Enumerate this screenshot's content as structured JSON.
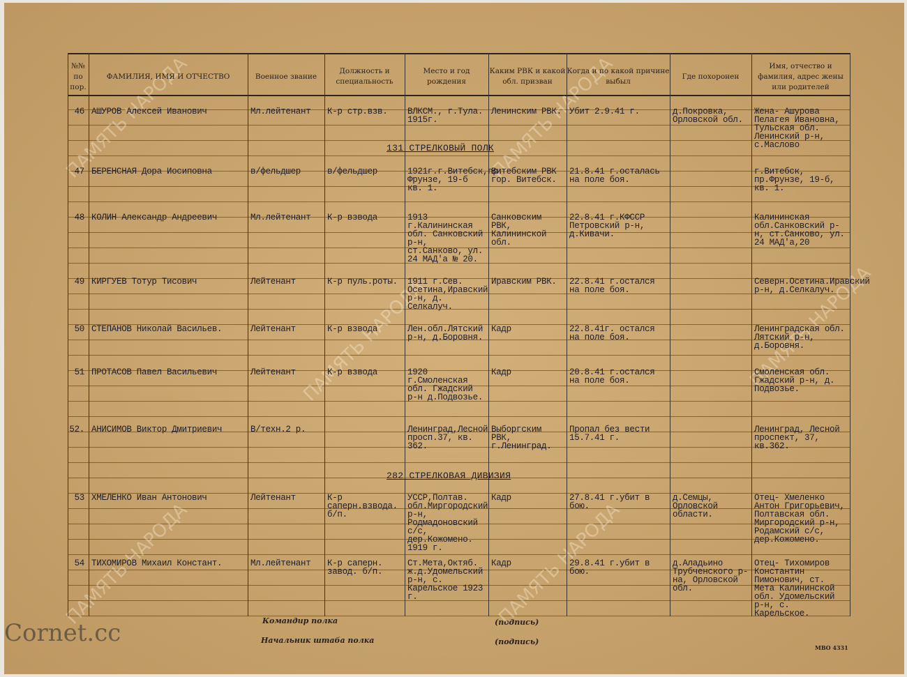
{
  "header": {
    "columns": [
      "№№ по пор.",
      "ФАМИЛИЯ, ИМЯ И ОТЧЕСТВО",
      "Военное звание",
      "Должность и специальность",
      "Место и год рождения",
      "Каким РВК и какой обл. призван",
      "Когда и по какой причине выбыл",
      "Где похоронен",
      "Имя, отчество и фамилия, адрес жены или родителей"
    ]
  },
  "table": {
    "rows": [
      [
        "46",
        "АШУРОВ Алексей Иванович",
        "Мл.лейтенант",
        "К-р стр.взв.",
        "ВЛКСМ., г.Тула. 1915г.",
        "Ленинским РВК.",
        "Убит 2.9.41 г.",
        "д.Покровка, Орловской обл.",
        "Жена- Ашурова Пелагея Ивановна, Тульская обл. Ленинский р-н, с.Маслово"
      ],
      [
        "131 СТРЕЛКОВЫЙ ПОЛК"
      ],
      [
        "47",
        "БЕРЕНСНАЯ Дора Иосиповна",
        "в/фельдшер",
        "в/фельдшер",
        "1921г.г.Витебск,пр. Фрунзе, 19-б кв. 1.",
        "Витебским РВК гор. Витебск.",
        "21.8.41 г.осталась на поле боя.",
        "",
        "г.Витебск, пр.Фрунзе, 19-б, кв. 1."
      ],
      [
        "48",
        "КОЛИН Александр Андреевич",
        "Мл.лейтенант",
        "К-р взвода",
        "1913 г.Калининская обл. Санковский р-н, ст.Санково, ул. 24 МАД'а № 20.",
        "Санковским РВК, Калининской обл.",
        "22.8.41 г.КФССР Петровский р-н, д.Кивачи.",
        "",
        "Калининская обл.Санковский р-н, ст.Санково, ул. 24 МАД'а,20"
      ],
      [
        "49",
        "КИРГУЕВ Тотур Тисович",
        "Лейтенант",
        "К-р пуль.роты.",
        "1911 г.Сев. Осетина,Иравский р-н, д. Селкалуч.",
        "Иравским РВК.",
        "22.8.41 г.остался на поле боя.",
        "",
        "Северн.Осетина.Иравский р-н, д.Селкалуч."
      ],
      [
        "50",
        "СТЕПАНОВ Николай Васильев.",
        "Лейтенант",
        "К-р взвода",
        "Лен.обл.Лятский р-н, д.Боровня.",
        "Кадр",
        "22.8.41г. остался на поле боя.",
        "",
        "Ленинградская обл. Лятский р-н, д.Боровня."
      ],
      [
        "51",
        "ПРОТАСОВ Павел Васильевич",
        "Лейтенант",
        "К-р взвода",
        "1920 г.Смоленская обл. Гжадский р-н д.Подвозье.",
        "Кадр",
        "20.8.41 г.остался на поле боя.",
        "",
        "Смоленская обл. Гжадский р-н, д. Подвозье."
      ],
      [
        "52.",
        "АНИСИМОВ Виктор Дмитриевич",
        "В/техн.2 р.",
        "",
        "Ленинград,Лесной просп.37, кв. 362.",
        "Выборгским РВК, г.Ленинград.",
        "Пропал без вести 15.7.41 г.",
        "",
        "Ленинград, Лесной проспект, 37, кв.362."
      ],
      [
        "282 СТРЕЛКОВАЯ ДИВИЗИЯ"
      ],
      [
        "53",
        "ХМЕЛЕНКО Иван Антонович",
        "Лейтенант",
        "К-р саперн.взвода. б/п.",
        "УССР,Полтав. обл.Миргородский р-н, Родмадоновский с/с, дер.Кожомено. 1919 г.",
        "Кадр",
        "27.8.41 г.убит в бою.",
        "д.Семцы, Орловской области.",
        "Отец- Хмеленко Антон Григорьевич, Полтавская обл. Миргородский р-н, Родамский с/с, дер.Кожомено."
      ],
      [
        "54",
        "ТИХОМИРОВ Михаил Констант.",
        "Мл.лейтенант",
        "К-р саперн. завод. б/п.",
        "Ст.Мета,Октяб. ж.д.Удомельский р-н, с. Карельское 1923 г.",
        "Кадр",
        "29.8.41 г.убит в бою.",
        "д.Аладьино Трубченского р-на, Орловской обл.",
        "Отец- Тихомиров Константин Пимонович, ст. Мета Калининской обл. Удомельский р-н, с. Карельское."
      ]
    ]
  },
  "footer": {
    "commander": "Командир полка",
    "commander_sign": "(подпись)",
    "chief": "Начальник штаба полка",
    "chief_sign": "(подпись)",
    "form": "МВО 4331"
  },
  "watermarks": {
    "archive": "ПАМЯТЬ НАРОДА",
    "site": "Cornet.cc"
  }
}
